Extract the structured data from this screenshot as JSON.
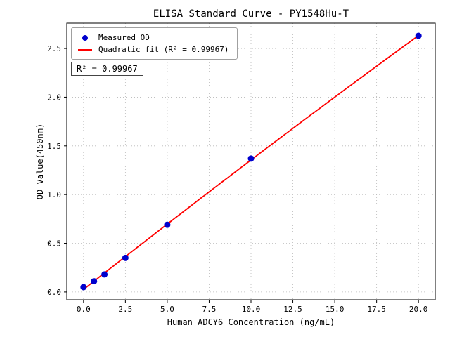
{
  "chart_data": {
    "type": "scatter",
    "title": "ELISA Standard Curve - PY1548Hu-T",
    "xlabel": "Human ADCY6 Concentration (ng/mL)",
    "ylabel": "OD Value(450nm)",
    "x": [
      0,
      0.625,
      1.25,
      2.5,
      5,
      10,
      20
    ],
    "y": [
      0.05,
      0.11,
      0.18,
      0.35,
      0.69,
      1.37,
      2.63
    ],
    "fit": "quadratic",
    "xlim": [
      -1,
      21
    ],
    "ylim": [
      -0.08,
      2.76
    ],
    "xticks": [
      0,
      2.5,
      5,
      7.5,
      10,
      12.5,
      15,
      17.5,
      20
    ],
    "xtick_labels": [
      "0.0",
      "2.5",
      "5.0",
      "7.5",
      "10.0",
      "12.5",
      "15.0",
      "17.5",
      "20.0"
    ],
    "yticks": [
      0,
      0.5,
      1,
      1.5,
      2,
      2.5
    ],
    "ytick_labels": [
      "0.0",
      "0.5",
      "1.0",
      "1.5",
      "2.0",
      "2.5"
    ],
    "grid": true,
    "legend": {
      "position": "upper-left",
      "items": [
        {
          "label": "Measured OD",
          "marker": "dot",
          "color": "#0000cd"
        },
        {
          "label": "Quadratic fit (R² = 0.99967)",
          "marker": "line",
          "color": "#ff0000"
        }
      ]
    },
    "annotation": "R² = 0.99967",
    "colors": {
      "points": "#0000cd",
      "fit_line": "#ff0000",
      "grid": "#b8b8b8",
      "axis": "#000000",
      "background": "#ffffff"
    }
  }
}
